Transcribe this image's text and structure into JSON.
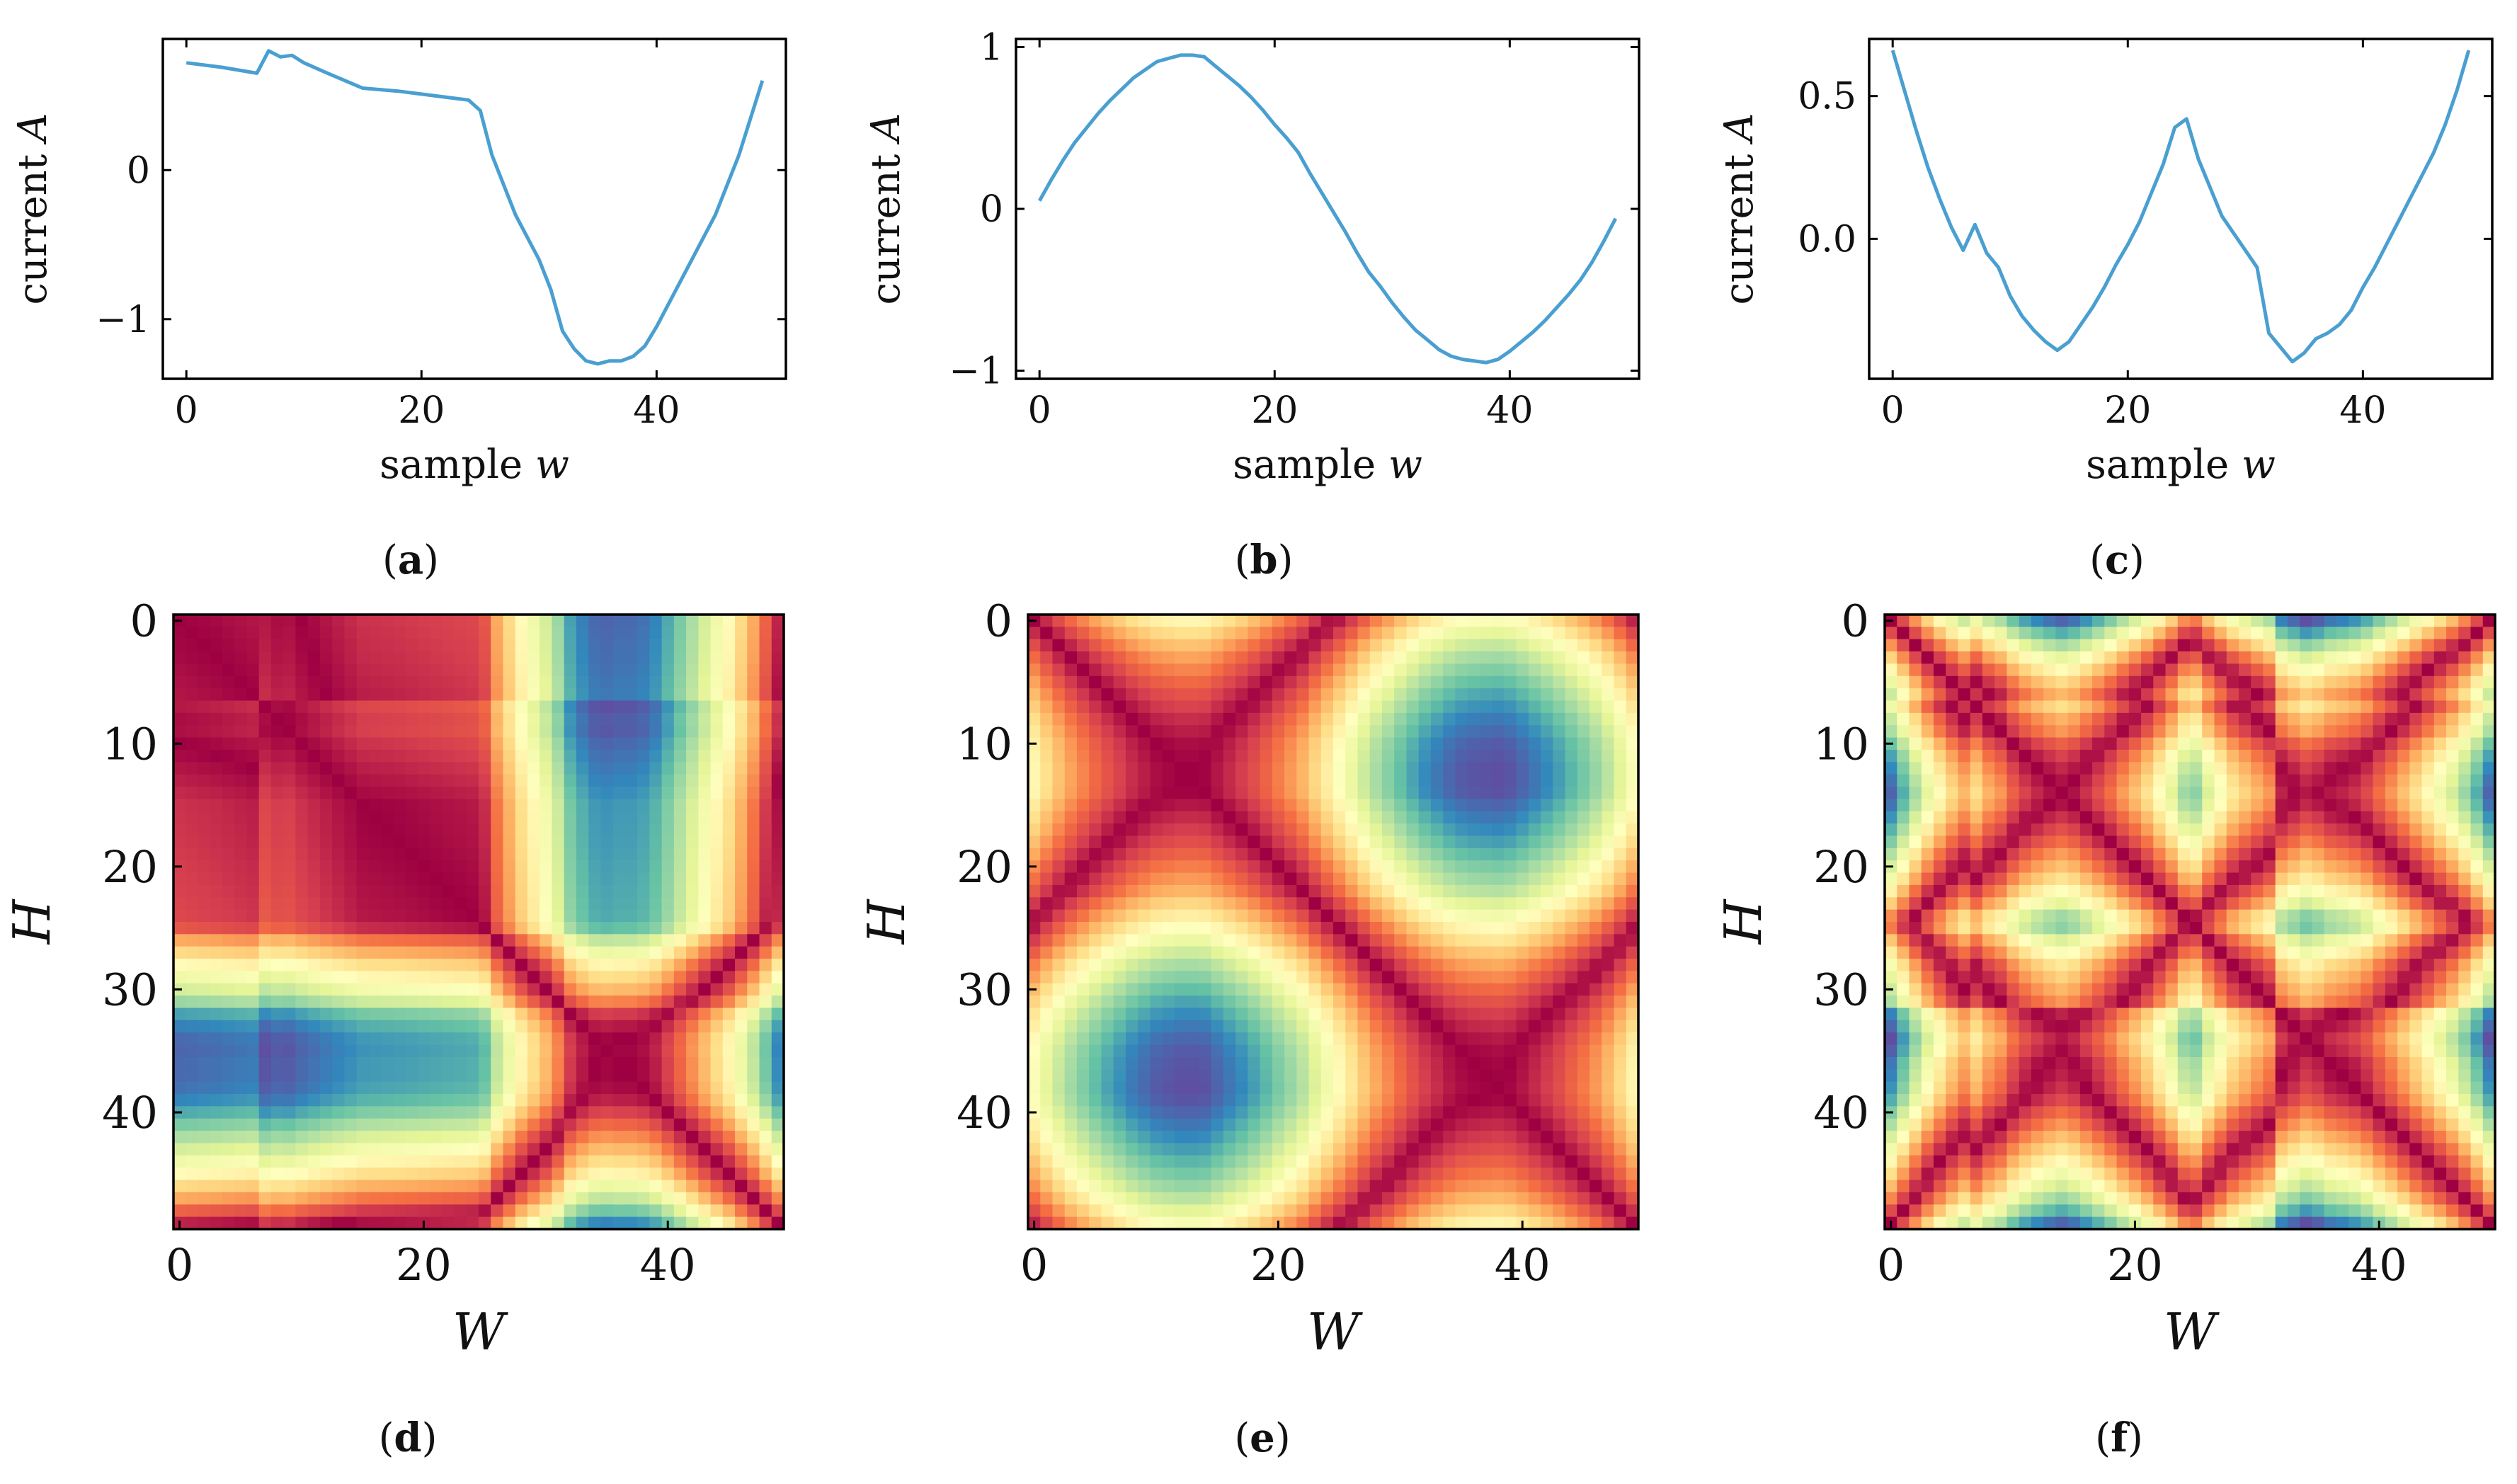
{
  "chart_data": [
    {
      "type": "line",
      "label": "(a)",
      "label_letter": "a",
      "xlabel": "sample",
      "xlabel_var": "w",
      "ylabel": "current",
      "ylabel_var": "A",
      "xlim": [
        -2,
        51
      ],
      "ylim": [
        -1.4,
        0.88
      ],
      "xticks": [
        0,
        20,
        40
      ],
      "yticks": [
        0,
        -1
      ],
      "ytick_labels": [
        "0",
        "−1"
      ],
      "series": [
        {
          "name": "current A",
          "x": [
            0,
            3,
            6,
            7,
            8,
            9,
            10,
            12,
            15,
            18,
            21,
            24,
            25,
            26,
            28,
            30,
            31,
            32,
            33,
            34,
            35,
            36,
            37,
            38,
            39,
            40,
            42,
            45,
            47,
            49
          ],
          "y": [
            0.72,
            0.69,
            0.65,
            0.8,
            0.76,
            0.77,
            0.72,
            0.65,
            0.55,
            0.53,
            0.5,
            0.47,
            0.4,
            0.1,
            -0.3,
            -0.6,
            -0.8,
            -1.08,
            -1.2,
            -1.28,
            -1.3,
            -1.28,
            -1.28,
            -1.25,
            -1.18,
            -1.05,
            -0.75,
            -0.3,
            0.1,
            0.6
          ]
        }
      ]
    },
    {
      "type": "line",
      "label": "(b)",
      "label_letter": "b",
      "xlabel": "sample",
      "xlabel_var": "w",
      "ylabel": "current",
      "ylabel_var": "A",
      "xlim": [
        -2,
        51
      ],
      "ylim": [
        -1.05,
        1.05
      ],
      "xticks": [
        0,
        20,
        40
      ],
      "yticks": [
        1,
        0,
        -1
      ],
      "ytick_labels": [
        "1",
        "0",
        "−1"
      ],
      "series": [
        {
          "name": "current A",
          "x": [
            0,
            1,
            2,
            3,
            4,
            5,
            6,
            7,
            8,
            9,
            10,
            11,
            12,
            13,
            14,
            15,
            16,
            17,
            18,
            19,
            20,
            21,
            22,
            23,
            24,
            25,
            26,
            27,
            28,
            29,
            30,
            31,
            32,
            33,
            34,
            35,
            36,
            37,
            38,
            39,
            40,
            41,
            42,
            43,
            44,
            45,
            46,
            47,
            48,
            49
          ],
          "y": [
            0.05,
            0.18,
            0.3,
            0.41,
            0.5,
            0.59,
            0.67,
            0.74,
            0.81,
            0.86,
            0.91,
            0.93,
            0.95,
            0.95,
            0.94,
            0.88,
            0.82,
            0.76,
            0.69,
            0.61,
            0.52,
            0.44,
            0.35,
            0.22,
            0.1,
            -0.02,
            -0.14,
            -0.27,
            -0.39,
            -0.48,
            -0.58,
            -0.67,
            -0.75,
            -0.81,
            -0.87,
            -0.91,
            -0.93,
            -0.94,
            -0.95,
            -0.93,
            -0.88,
            -0.82,
            -0.76,
            -0.69,
            -0.61,
            -0.53,
            -0.44,
            -0.33,
            -0.2,
            -0.06
          ]
        }
      ]
    },
    {
      "type": "line",
      "label": "(c)",
      "label_letter": "c",
      "xlabel": "sample",
      "xlabel_var": "w",
      "ylabel": "current",
      "ylabel_var": "A",
      "xlim": [
        -2,
        51
      ],
      "ylim": [
        -0.49,
        0.7
      ],
      "xticks": [
        0,
        20,
        40
      ],
      "yticks": [
        0.5,
        0.0
      ],
      "ytick_labels": [
        "0.5",
        "0.0"
      ],
      "series": [
        {
          "name": "current A",
          "x": [
            0,
            1,
            2,
            3,
            4,
            5,
            6,
            7,
            8,
            9,
            10,
            11,
            12,
            13,
            14,
            15,
            16,
            17,
            18,
            19,
            20,
            21,
            22,
            23,
            24,
            25,
            26,
            27,
            28,
            29,
            30,
            31,
            32,
            33,
            34,
            35,
            36,
            37,
            38,
            39,
            40,
            41,
            42,
            43,
            44,
            45,
            46,
            47,
            48,
            49
          ],
          "y": [
            0.66,
            0.52,
            0.38,
            0.25,
            0.14,
            0.04,
            -0.04,
            0.05,
            -0.05,
            -0.1,
            -0.2,
            -0.27,
            -0.32,
            -0.36,
            -0.39,
            -0.36,
            -0.3,
            -0.24,
            -0.17,
            -0.09,
            -0.02,
            0.06,
            0.16,
            0.26,
            0.39,
            0.42,
            0.28,
            0.18,
            0.08,
            0.02,
            -0.04,
            -0.1,
            -0.33,
            -0.38,
            -0.43,
            -0.4,
            -0.35,
            -0.33,
            -0.3,
            -0.25,
            -0.17,
            -0.1,
            -0.02,
            0.06,
            0.14,
            0.22,
            0.3,
            0.4,
            0.52,
            0.66
          ]
        }
      ]
    },
    {
      "type": "heatmap",
      "label": "(d)",
      "label_letter": "d",
      "xlabel": "W",
      "ylabel": "H",
      "size": 50,
      "source_series": 0,
      "colormap": "Spectral",
      "xticks": [
        0,
        20,
        40
      ],
      "yticks": [
        0,
        10,
        20,
        30,
        40
      ]
    },
    {
      "type": "heatmap",
      "label": "(e)",
      "label_letter": "e",
      "xlabel": "W",
      "ylabel": "H",
      "size": 50,
      "source_series": 1,
      "colormap": "Spectral",
      "xticks": [
        0,
        20,
        40
      ],
      "yticks": [
        0,
        10,
        20,
        30,
        40
      ]
    },
    {
      "type": "heatmap",
      "label": "(f)",
      "label_letter": "f",
      "xlabel": "W",
      "ylabel": "H",
      "size": 50,
      "source_series": 2,
      "colormap": "Spectral",
      "xticks": [
        0,
        20,
        40
      ],
      "yticks": [
        0,
        10,
        20,
        30,
        40
      ]
    }
  ],
  "colors": {
    "line": "#4a9fd1"
  }
}
